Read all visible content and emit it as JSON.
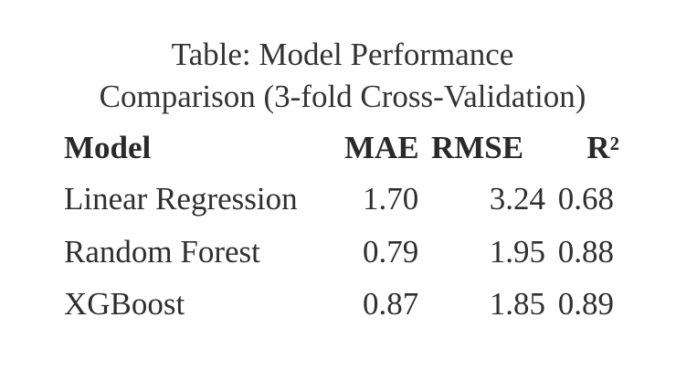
{
  "table": {
    "caption_line1": "Table: Model Performance",
    "caption_line2": "Comparison (3-fold Cross-Validation)",
    "headers": [
      "Model",
      "MAE",
      "RMSE",
      "R²"
    ],
    "rows": [
      [
        "Linear Regression",
        "1.70",
        "3.24",
        "0.68"
      ],
      [
        "Random Forest",
        "0.79",
        "1.95",
        "0.88"
      ],
      [
        "XGBoost",
        "0.87",
        "1.85",
        "0.89"
      ]
    ]
  }
}
